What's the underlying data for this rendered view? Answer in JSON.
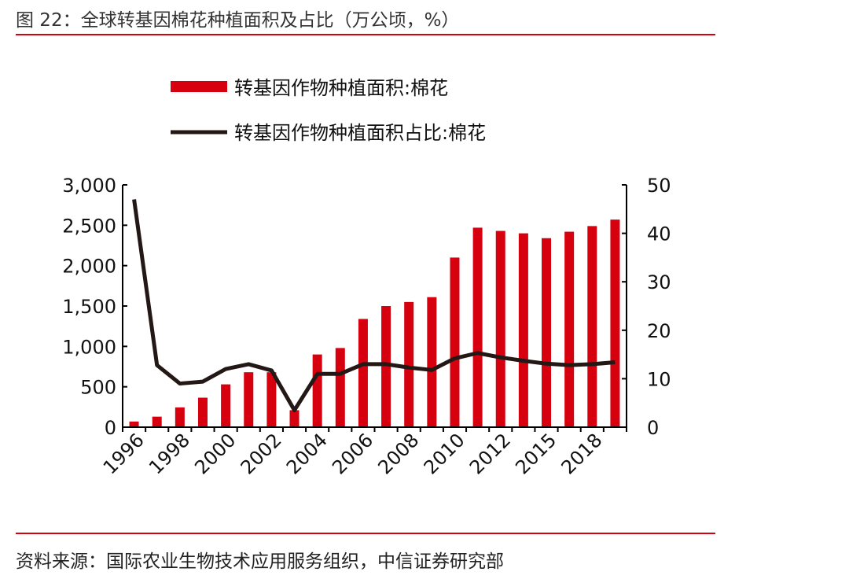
{
  "title": "图 22：全球转基因棉花种植面积及占比（万公顷，%）",
  "source": "资料来源：国际农业生物技术应用服务组织，中信证券研究部",
  "chart_data": {
    "type": "bar+line",
    "categories": [
      "1996",
      "1997",
      "1998",
      "1999",
      "2000",
      "2001",
      "2002",
      "2003",
      "2004",
      "2005",
      "2006",
      "2007",
      "2008",
      "2009",
      "2010",
      "2011",
      "2012",
      "2014",
      "2015",
      "2017",
      "2018",
      "2019"
    ],
    "tick_labels": [
      "1996",
      "1998",
      "2000",
      "2002",
      "2004",
      "2006",
      "2008",
      "2010",
      "2012",
      "2015",
      "2018"
    ],
    "series": [
      {
        "name": "转基因作物种植面积:棉花",
        "type": "bar",
        "axis": "left",
        "color": "#d7000f",
        "values": [
          70,
          130,
          245,
          365,
          530,
          680,
          680,
          210,
          900,
          980,
          1340,
          1500,
          1550,
          1610,
          2100,
          2470,
          2430,
          2400,
          2340,
          2420,
          2490,
          2570
        ]
      },
      {
        "name": "转基因作物种植面积占比:棉花",
        "type": "line",
        "axis": "right",
        "color": "#231815",
        "values": [
          47,
          12.8,
          9,
          9.4,
          12,
          13,
          11.7,
          3.5,
          11,
          11,
          13,
          13,
          12.3,
          11.8,
          14.2,
          15.3,
          14.4,
          13.7,
          13.1,
          12.8,
          13,
          13.4
        ]
      }
    ],
    "y_left": {
      "min": 0,
      "max": 3000,
      "ticks": [
        "0",
        "500",
        "1,000",
        "1,500",
        "2,000",
        "2,500",
        "3,000"
      ]
    },
    "y_right": {
      "min": 0,
      "max": 50,
      "ticks": [
        "0",
        "10",
        "20",
        "30",
        "40",
        "50"
      ]
    },
    "legend_position": "top",
    "grid": false
  }
}
